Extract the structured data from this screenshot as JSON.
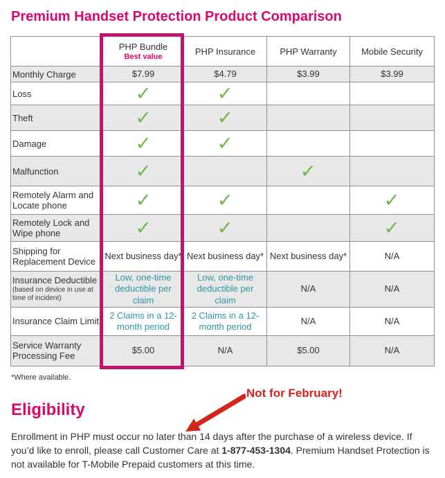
{
  "page": {
    "title": "Premium Handset Protection Product Comparison",
    "footnote": "*Where available.",
    "eligibility": {
      "heading": "Eligibility",
      "paragraph_parts": [
        {
          "text": "Enrollment in PHP must occur no later than ",
          "bold": false,
          "name": "paragraph-text"
        },
        {
          "text": "14 days",
          "bold": false,
          "name": "enrollment-window-text"
        },
        {
          "text": " after the purchase of a wireless device. If you’d like to enroll, please call Customer Care at ",
          "bold": false,
          "name": "paragraph-text"
        },
        {
          "text": "1-877-453-1304",
          "bold": true,
          "name": "customer-care-phone-number"
        },
        {
          "text": ". Premium Handset Protection is not available for T-Mobile Prepaid customers at this time.",
          "bold": false,
          "name": "paragraph-text"
        }
      ]
    }
  },
  "annotation": {
    "label": "Not for February!"
  },
  "table": {
    "check_symbol": "✓",
    "columns": [
      {
        "label": ""
      },
      {
        "label": "PHP Bundle",
        "badge": "Best value",
        "highlighted": true
      },
      {
        "label": "PHP Insurance"
      },
      {
        "label": "PHP Warranty"
      },
      {
        "label": "Mobile Security"
      }
    ],
    "rows": [
      {
        "label": "Monthly Charge",
        "cells": [
          {
            "t": "text",
            "v": "$7.99"
          },
          {
            "t": "text",
            "v": "$4.79"
          },
          {
            "t": "text",
            "v": "$3.99"
          },
          {
            "t": "text",
            "v": "$3.99"
          }
        ]
      },
      {
        "label": "Loss",
        "cells": [
          {
            "t": "check"
          },
          {
            "t": "check"
          },
          {
            "t": "empty"
          },
          {
            "t": "empty"
          }
        ]
      },
      {
        "label": "Theft",
        "cells": [
          {
            "t": "check"
          },
          {
            "t": "check"
          },
          {
            "t": "empty"
          },
          {
            "t": "empty"
          }
        ]
      },
      {
        "label": "Damage",
        "cells": [
          {
            "t": "check"
          },
          {
            "t": "check"
          },
          {
            "t": "empty"
          },
          {
            "t": "empty"
          }
        ]
      },
      {
        "label": "Malfunction",
        "cells": [
          {
            "t": "check"
          },
          {
            "t": "empty"
          },
          {
            "t": "check"
          },
          {
            "t": "empty"
          }
        ]
      },
      {
        "label": "Remotely Alarm and Locate phone",
        "cells": [
          {
            "t": "check"
          },
          {
            "t": "check"
          },
          {
            "t": "empty"
          },
          {
            "t": "check"
          }
        ]
      },
      {
        "label": "Remotely Lock and Wipe phone",
        "cells": [
          {
            "t": "check"
          },
          {
            "t": "check"
          },
          {
            "t": "empty"
          },
          {
            "t": "check"
          }
        ]
      },
      {
        "label": "Shipping for Replacement Device",
        "cells": [
          {
            "t": "text",
            "v": "Next business day*"
          },
          {
            "t": "text",
            "v": "Next business day*"
          },
          {
            "t": "text",
            "v": "Next business day*"
          },
          {
            "t": "text",
            "v": "N/A"
          }
        ]
      },
      {
        "label": "Insurance Deductible",
        "sublabel": "(based on device in use at time of incident)",
        "cells": [
          {
            "t": "teal",
            "v": "Low, one-time deductible per claim"
          },
          {
            "t": "teal",
            "v": "Low, one-time deductible per claim"
          },
          {
            "t": "text",
            "v": "N/A"
          },
          {
            "t": "text",
            "v": "N/A"
          }
        ]
      },
      {
        "label": "Insurance Claim Limit",
        "cells": [
          {
            "t": "teal",
            "v": "2 Claims in a 12-month period"
          },
          {
            "t": "teal",
            "v": "2 Claims in a 12-month period"
          },
          {
            "t": "text",
            "v": "N/A"
          },
          {
            "t": "text",
            "v": "N/A"
          }
        ]
      },
      {
        "label": "Service Warranty Processing Fee",
        "cells": [
          {
            "t": "text",
            "v": "$5.00"
          },
          {
            "t": "text",
            "v": "N/A"
          },
          {
            "t": "text",
            "v": "$5.00"
          },
          {
            "t": "text",
            "v": "N/A"
          }
        ]
      }
    ]
  },
  "colors": {
    "magenta": "#d8086f",
    "highlight": "#c0146e",
    "check_green": "#6fba4a",
    "teal": "#2d95a4",
    "annotation_red": "#d3251c"
  }
}
